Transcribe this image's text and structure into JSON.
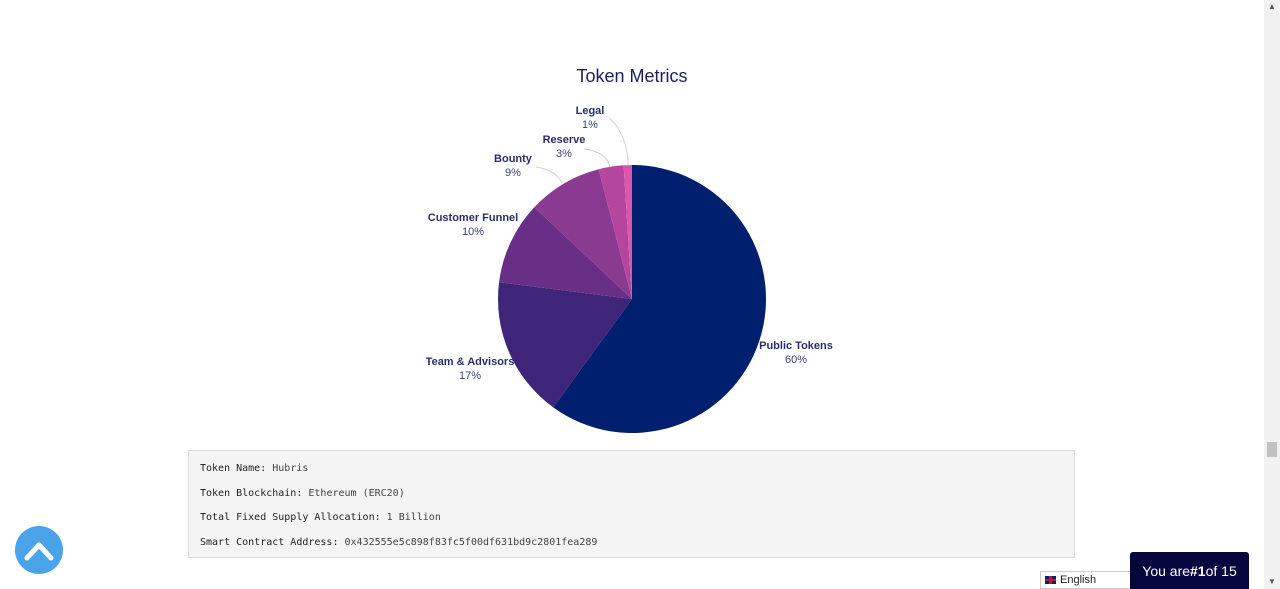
{
  "chart_data": {
    "type": "pie",
    "title": "Token Metrics",
    "slices": [
      {
        "name": "Public Tokens",
        "value": 60,
        "label": "60%",
        "color": "#001f6e"
      },
      {
        "name": "Team & Advisors",
        "value": 17,
        "label": "17%",
        "color": "#3f257a"
      },
      {
        "name": "Customer Funnel",
        "value": 10,
        "label": "10%",
        "color": "#692f86"
      },
      {
        "name": "Bounty",
        "value": 9,
        "label": "9%",
        "color": "#8b3a92"
      },
      {
        "name": "Reserve",
        "value": 3,
        "label": "3%",
        "color": "#b4479d"
      },
      {
        "name": "Legal",
        "value": 1,
        "label": "1%",
        "color": "#dc56ab"
      }
    ]
  },
  "token_info": {
    "name_key": "Token Name:",
    "name_val": "Hubris",
    "blockchain_key": "Token Blockchain:",
    "blockchain_val": "Ethereum (ERC20)",
    "supply_key": "Total Fixed Supply Allocation:",
    "supply_val": "1 Billion",
    "contract_key": "Smart Contract Address:",
    "contract_val": "0x432555e5c898f83fc5f00df631bd9c2801fea289"
  },
  "language": {
    "selected": "English",
    "icon": "uk-flag-icon"
  },
  "rank": {
    "prefix": "You are ",
    "number": "#1",
    "suffix": " of 15"
  },
  "icons": {
    "back_to_top": "chevron-up-icon",
    "scroll_up": "triangle-up-icon",
    "scroll_down": "triangle-down-icon"
  }
}
